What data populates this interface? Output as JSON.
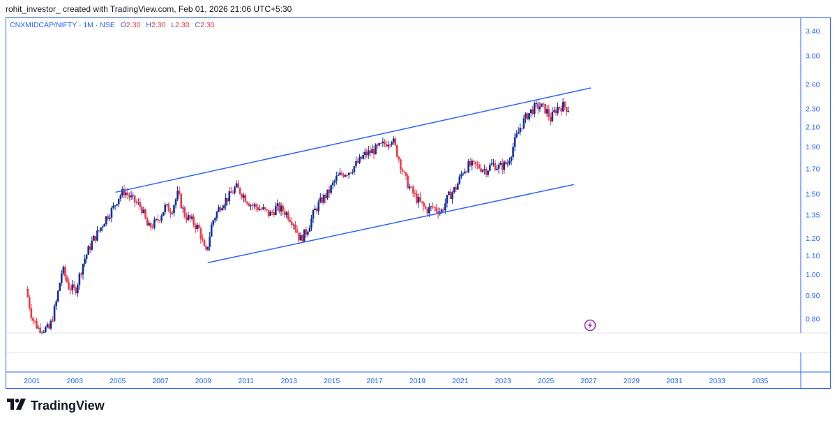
{
  "header": {
    "text": "rohit_investor_ created with TradingView.com, Feb 01, 2026 21:06 UTC+5:30"
  },
  "legend": {
    "symbol": "CNXMIDCAP/NIFTY · 1M · NSE",
    "o_label": "O",
    "o_value": "2.30",
    "h_label": "H",
    "h_value": "2.30",
    "l_label": "L",
    "l_value": "2.30",
    "c_label": "C",
    "c_value": "2.30"
  },
  "brand": {
    "name": "TradingView"
  },
  "colors": {
    "accent": "#2962ff",
    "up": "#0d2f9e",
    "down": "#f23645",
    "flash": "#9c27b0"
  },
  "icons": {
    "flash": "lightning-icon",
    "logo": "tradingview-logo-icon"
  },
  "chart_data": {
    "type": "candlestick",
    "title": "CNXMIDCAP/NIFTY · 1M · NSE",
    "scale": "log",
    "ylim": [
      0.745,
      3.62
    ],
    "xlim": [
      1999.8,
      2036.9
    ],
    "y_ticks": [
      "3.40",
      "3.00",
      "2.60",
      "2.30",
      "2.10",
      "1.90",
      "1.70",
      "1.50",
      "1.35",
      "1.20",
      "1.10",
      "1.00",
      "0.90",
      "0.80"
    ],
    "x_ticks": [
      "2001",
      "2003",
      "2005",
      "2007",
      "2009",
      "2011",
      "2013",
      "2015",
      "2017",
      "2019",
      "2021",
      "2023",
      "2025",
      "2027",
      "2029",
      "2031",
      "2033",
      "2035"
    ],
    "trendlines": [
      {
        "name": "upper channel",
        "x1": 2004.9,
        "y1": 1.51,
        "x2": 2027.1,
        "y2": 2.55
      },
      {
        "name": "lower channel",
        "x1": 2009.2,
        "y1": 1.06,
        "x2": 2026.3,
        "y2": 1.57
      }
    ],
    "path": [
      [
        2000.8,
        0.93
      ],
      [
        2001.1,
        0.8
      ],
      [
        2001.4,
        0.76
      ],
      [
        2001.9,
        0.76
      ],
      [
        2002.2,
        0.86
      ],
      [
        2002.5,
        1.03
      ],
      [
        2002.8,
        0.94
      ],
      [
        2003.1,
        0.92
      ],
      [
        2003.5,
        1.07
      ],
      [
        2003.9,
        1.18
      ],
      [
        2004.2,
        1.24
      ],
      [
        2004.5,
        1.32
      ],
      [
        2004.9,
        1.4
      ],
      [
        2005.1,
        1.47
      ],
      [
        2005.4,
        1.52
      ],
      [
        2005.8,
        1.45
      ],
      [
        2006.2,
        1.4
      ],
      [
        2006.5,
        1.26
      ],
      [
        2006.9,
        1.3
      ],
      [
        2007.3,
        1.4
      ],
      [
        2007.6,
        1.38
      ],
      [
        2007.9,
        1.5
      ],
      [
        2008.2,
        1.35
      ],
      [
        2008.6,
        1.3
      ],
      [
        2008.9,
        1.25
      ],
      [
        2009.2,
        1.1
      ],
      [
        2009.5,
        1.3
      ],
      [
        2009.9,
        1.42
      ],
      [
        2010.3,
        1.48
      ],
      [
        2010.6,
        1.55
      ],
      [
        2010.9,
        1.5
      ],
      [
        2011.3,
        1.42
      ],
      [
        2011.6,
        1.4
      ],
      [
        2011.9,
        1.38
      ],
      [
        2012.2,
        1.35
      ],
      [
        2012.5,
        1.4
      ],
      [
        2012.9,
        1.37
      ],
      [
        2013.3,
        1.3
      ],
      [
        2013.6,
        1.19
      ],
      [
        2013.9,
        1.24
      ],
      [
        2014.3,
        1.38
      ],
      [
        2014.6,
        1.45
      ],
      [
        2014.9,
        1.5
      ],
      [
        2015.3,
        1.62
      ],
      [
        2015.6,
        1.66
      ],
      [
        2015.9,
        1.68
      ],
      [
        2016.3,
        1.75
      ],
      [
        2016.6,
        1.82
      ],
      [
        2016.9,
        1.85
      ],
      [
        2017.2,
        1.88
      ],
      [
        2017.5,
        1.92
      ],
      [
        2017.9,
        1.98
      ],
      [
        2018.2,
        1.8
      ],
      [
        2018.5,
        1.62
      ],
      [
        2018.8,
        1.52
      ],
      [
        2019.1,
        1.45
      ],
      [
        2019.5,
        1.38
      ],
      [
        2019.8,
        1.4
      ],
      [
        2020.2,
        1.37
      ],
      [
        2020.5,
        1.47
      ],
      [
        2020.9,
        1.55
      ],
      [
        2021.2,
        1.68
      ],
      [
        2021.5,
        1.73
      ],
      [
        2021.9,
        1.72
      ],
      [
        2022.3,
        1.69
      ],
      [
        2022.6,
        1.74
      ],
      [
        2022.9,
        1.71
      ],
      [
        2023.3,
        1.75
      ],
      [
        2023.6,
        1.93
      ],
      [
        2023.9,
        2.1
      ],
      [
        2024.2,
        2.22
      ],
      [
        2024.5,
        2.3
      ],
      [
        2024.8,
        2.33
      ],
      [
        2025.1,
        2.28
      ],
      [
        2025.3,
        2.18
      ],
      [
        2025.6,
        2.31
      ],
      [
        2025.9,
        2.33
      ],
      [
        2026.1,
        2.3
      ]
    ]
  }
}
